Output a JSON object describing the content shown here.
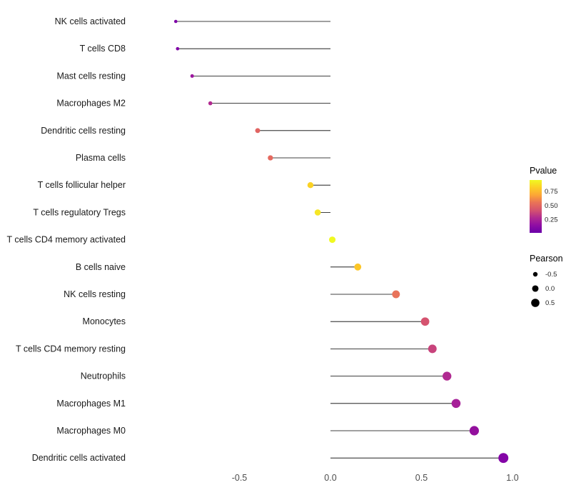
{
  "chart_data": {
    "type": "scatter",
    "variant": "lollipop",
    "orientation": "horizontal",
    "title": "",
    "xlabel": "",
    "ylabel": "",
    "grid": false,
    "xlim": [
      -1.0,
      1.15
    ],
    "x_ticks": [
      -0.5,
      0.0,
      0.5,
      1.0
    ],
    "x_tick_labels": [
      "-0.5",
      "0.0",
      "0.5",
      "1.0"
    ],
    "points": [
      {
        "label": "NK cells activated",
        "pearson": -0.85,
        "color": "#7e03a8"
      },
      {
        "label": "T cells CD8",
        "pearson": -0.84,
        "color": "#8104a7"
      },
      {
        "label": "Mast cells resting",
        "pearson": -0.76,
        "color": "#9c179e"
      },
      {
        "label": "Macrophages M2",
        "pearson": -0.66,
        "color": "#b12a90"
      },
      {
        "label": "Dendritic cells resting",
        "pearson": -0.4,
        "color": "#e16462"
      },
      {
        "label": "Plasma cells",
        "pearson": -0.33,
        "color": "#e5695f"
      },
      {
        "label": "T cells follicular helper",
        "pearson": -0.11,
        "color": "#fbd224"
      },
      {
        "label": "T cells regulatory Tregs",
        "pearson": -0.07,
        "color": "#f6e626"
      },
      {
        "label": "T cells CD4 memory activated",
        "pearson": 0.01,
        "color": "#f0f921"
      },
      {
        "label": "B cells naive",
        "pearson": 0.15,
        "color": "#fcc627"
      },
      {
        "label": "NK cells resting",
        "pearson": 0.36,
        "color": "#e8735a"
      },
      {
        "label": "Monocytes",
        "pearson": 0.52,
        "color": "#d5536f"
      },
      {
        "label": "T cells CD4 memory resting",
        "pearson": 0.56,
        "color": "#c8437c"
      },
      {
        "label": "Neutrophils",
        "pearson": 0.64,
        "color": "#b02a91"
      },
      {
        "label": "Macrophages M1",
        "pearson": 0.69,
        "color": "#a62098"
      },
      {
        "label": "Macrophages M0",
        "pearson": 0.79,
        "color": "#93109d"
      },
      {
        "label": "Dendritic cells activated",
        "pearson": 0.95,
        "color": "#8405a7"
      }
    ],
    "legends": {
      "pvalue": {
        "title": "Pvalue",
        "tick_values": [
          0.75,
          0.5,
          0.25
        ],
        "tick_labels": [
          "0.75",
          "0.50",
          "0.25"
        ],
        "range_top": 0.95,
        "range_bottom": 0.02,
        "gradient_top_to_bottom": [
          "#f0f921",
          "#fcce25",
          "#fca636",
          "#e97257",
          "#d5536f",
          "#b12a90",
          "#8f0da4",
          "#6a00a8"
        ]
      },
      "pearson": {
        "title": "Pearson",
        "items": [
          {
            "value": -0.5,
            "label": "-0.5"
          },
          {
            "value": 0.0,
            "label": "0.0"
          },
          {
            "value": 0.5,
            "label": "0.5"
          }
        ],
        "dot_color": "#000000"
      }
    }
  }
}
